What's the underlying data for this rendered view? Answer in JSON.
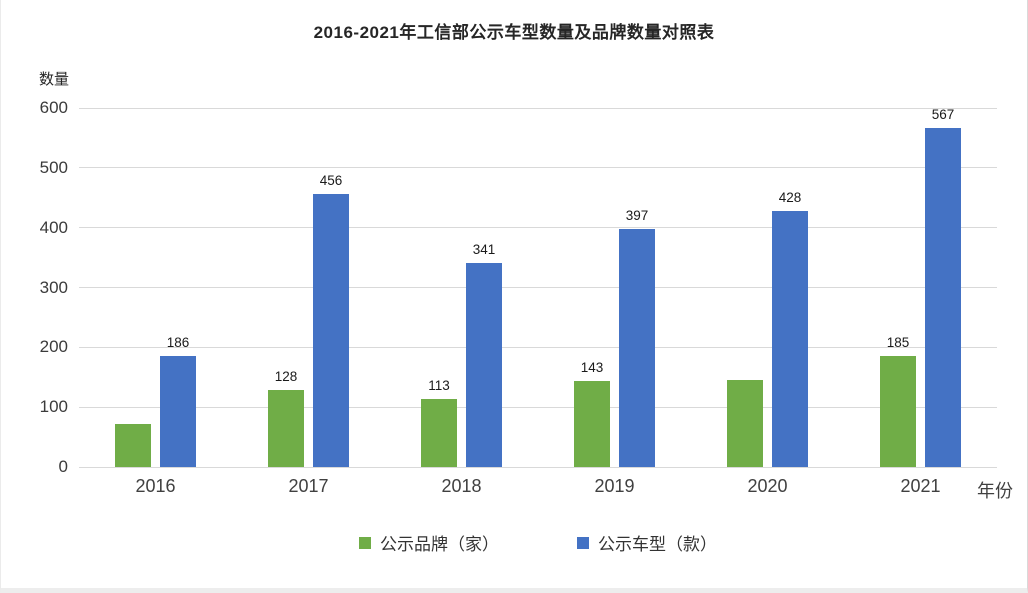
{
  "window": {
    "background": "#ffffff",
    "border_color": "#d9d9d9"
  },
  "chart_data": {
    "type": "bar",
    "title": "2016-2021年工信部公示车型数量及品牌数量对照表",
    "xlabel": "年份",
    "ylabel": "数量",
    "categories": [
      "2016",
      "2017",
      "2018",
      "2019",
      "2020",
      "2021"
    ],
    "series": [
      {
        "name": "公示品牌（家）",
        "color": "#70AD47",
        "values": [
          72,
          128,
          113,
          143,
          145,
          185
        ],
        "data_labels": [
          "",
          "128",
          "113",
          "143",
          "",
          "185"
        ]
      },
      {
        "name": "公示车型（款）",
        "color": "#4472C4",
        "values": [
          186,
          456,
          341,
          397,
          428,
          567
        ],
        "data_labels": [
          "186",
          "456",
          "341",
          "397",
          "428",
          "567"
        ]
      }
    ],
    "ylim": [
      0,
      600
    ],
    "ytick_interval": 100,
    "yticks": [
      "0",
      "100",
      "200",
      "300",
      "400",
      "500",
      "600"
    ],
    "grid": true,
    "gridline_color": "#d9d9d9",
    "legend_position": "bottom"
  }
}
